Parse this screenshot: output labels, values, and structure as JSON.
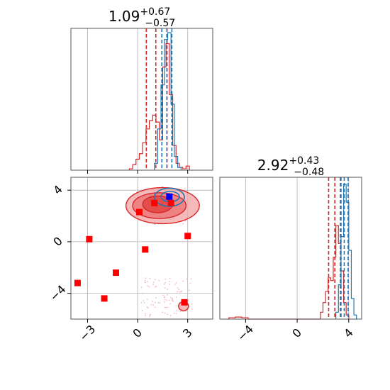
{
  "colors": {
    "red": "#d62728",
    "blue": "#1f77b4",
    "marker_red": "#ff0000",
    "marker_blue": "#0000ff",
    "fill_red": "#f4a3a3",
    "fill_dark": "#e23a3a"
  },
  "chart_data": [
    {
      "panel": "marginal-x",
      "type": "histogram",
      "title": {
        "value": "1.09",
        "upper": "+0.67",
        "lower": "−0.57"
      },
      "xlim": [
        -4,
        4.5
      ],
      "grid": true,
      "series": [
        {
          "color": "red",
          "edges": [
            -0.5,
            -0.3,
            -0.1,
            0.1,
            0.3,
            0.5,
            0.7,
            0.9,
            1.1,
            1.3,
            1.5,
            1.7,
            1.9,
            2.1,
            2.3,
            2.5,
            2.7,
            2.9,
            3.1
          ],
          "heights": [
            0.01,
            0.04,
            0.08,
            0.12,
            0.2,
            0.3,
            0.36,
            0.4,
            0.35,
            0.22,
            0.75,
            0.92,
            0.55,
            0.18,
            0.05,
            0.02,
            0.01,
            0.03
          ],
          "quantiles": [
            0.52,
            1.09,
            1.76
          ]
        },
        {
          "color": "blue",
          "edges": [
            1.0,
            1.2,
            1.4,
            1.6,
            1.8,
            2.0,
            2.2,
            2.4,
            2.6
          ],
          "heights": [
            0.05,
            0.3,
            0.62,
            0.95,
            1.0,
            0.48,
            0.1,
            0.02
          ],
          "quantiles": [
            1.45,
            1.75,
            2.05
          ]
        }
      ]
    },
    {
      "panel": "joint",
      "type": "scatter",
      "xlim": [
        -4,
        4.5
      ],
      "ylim": [
        -6,
        5
      ],
      "xticks": [
        "−3",
        "0",
        "3"
      ],
      "yticks": [
        "4",
        "0",
        "−4"
      ],
      "xtick_values": [
        -3,
        0,
        3
      ],
      "ytick_values": [
        4,
        0,
        -4
      ],
      "grid": true,
      "red_markers": [
        [
          -3.6,
          -3.2
        ],
        [
          -2.9,
          0.2
        ],
        [
          -2.0,
          -4.4
        ],
        [
          -1.3,
          -2.4
        ],
        [
          0.1,
          2.3
        ],
        [
          0.45,
          -0.6
        ],
        [
          1.0,
          3.0
        ],
        [
          2.0,
          3.0
        ],
        [
          2.8,
          -4.7
        ],
        [
          3.0,
          0.45
        ]
      ],
      "blue_markers": [
        [
          1.9,
          3.5
        ]
      ],
      "red_contours": [
        {
          "cx": 1.5,
          "cy": 2.8,
          "rx": 2.2,
          "ry": 1.4,
          "level": "outer"
        },
        {
          "cx": 1.3,
          "cy": 2.8,
          "rx": 1.6,
          "ry": 1.0,
          "level": "mid"
        },
        {
          "cx": 1.2,
          "cy": 2.9,
          "rx": 0.9,
          "ry": 0.65,
          "level": "inner"
        },
        {
          "cx": 2.75,
          "cy": -5.0,
          "rx": 0.3,
          "ry": 0.35,
          "level": "outer"
        }
      ],
      "blue_contours": [
        {
          "cx": 1.9,
          "cy": 3.45,
          "rx": 0.9,
          "ry": 0.7
        },
        {
          "cx": 1.95,
          "cy": 3.5,
          "rx": 0.55,
          "ry": 0.4
        }
      ]
    },
    {
      "panel": "marginal-y",
      "type": "histogram",
      "title": {
        "value": "2.92",
        "upper": "+0.43",
        "lower": "−0.48"
      },
      "xlim": [
        -6,
        5
      ],
      "xticks": [
        "−4",
        "0",
        "4"
      ],
      "xtick_values": [
        -4,
        0,
        4
      ],
      "grid": true,
      "series": [
        {
          "color": "red",
          "edges": [
            -5.3,
            -4.8,
            -4.3,
            -3.8,
            1.8,
            2.0,
            2.2,
            2.4,
            2.6,
            2.8,
            3.0,
            3.2,
            3.4,
            3.6,
            3.8,
            4.0
          ],
          "heights": [
            0.01,
            0.015,
            0.01,
            0.0,
            0.05,
            0.12,
            0.2,
            0.3,
            0.28,
            0.45,
            0.68,
            0.55,
            0.35,
            0.12,
            0.03
          ],
          "quantiles": [
            2.44,
            2.92,
            3.35
          ]
        },
        {
          "color": "blue",
          "edges": [
            3.0,
            3.2,
            3.4,
            3.6,
            3.8,
            4.0,
            4.2,
            4.4,
            4.6
          ],
          "heights": [
            0.05,
            0.25,
            0.6,
            0.98,
            0.85,
            0.5,
            0.15,
            0.03
          ],
          "quantiles": [
            3.4,
            3.65,
            3.95
          ]
        }
      ]
    }
  ]
}
